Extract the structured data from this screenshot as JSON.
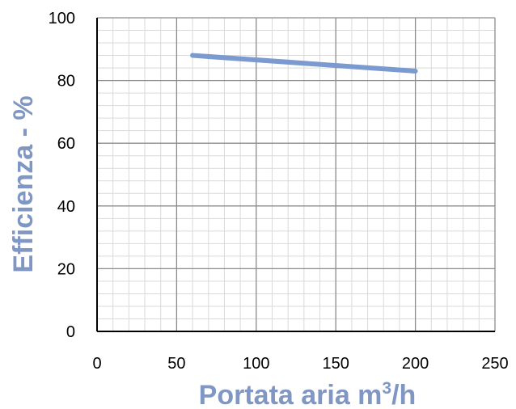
{
  "chart_data": {
    "type": "line",
    "title": "",
    "xlabel": "Portata aria m",
    "xlabel_superscript": "3",
    "xlabel_suffix": "/h",
    "ylabel": "Efficienza - %",
    "xlim": [
      0,
      250
    ],
    "ylim": [
      0,
      100
    ],
    "x_ticks": [
      "0",
      "50",
      "100",
      "150",
      "200",
      "250"
    ],
    "y_ticks": [
      "0",
      "20",
      "40",
      "60",
      "80",
      "100"
    ],
    "minor_grid_step_x": 10,
    "minor_grid_step_y": 4,
    "grid": true,
    "legend": "none",
    "series": [
      {
        "x": [
          60,
          200
        ],
        "y": [
          88,
          83
        ]
      }
    ],
    "colors": {
      "series": "#7B9BD0",
      "axis_title": "#8096C3",
      "major_grid": "#8C8C8C",
      "minor_grid": "#D9D9D9",
      "axis": "#000000"
    }
  }
}
